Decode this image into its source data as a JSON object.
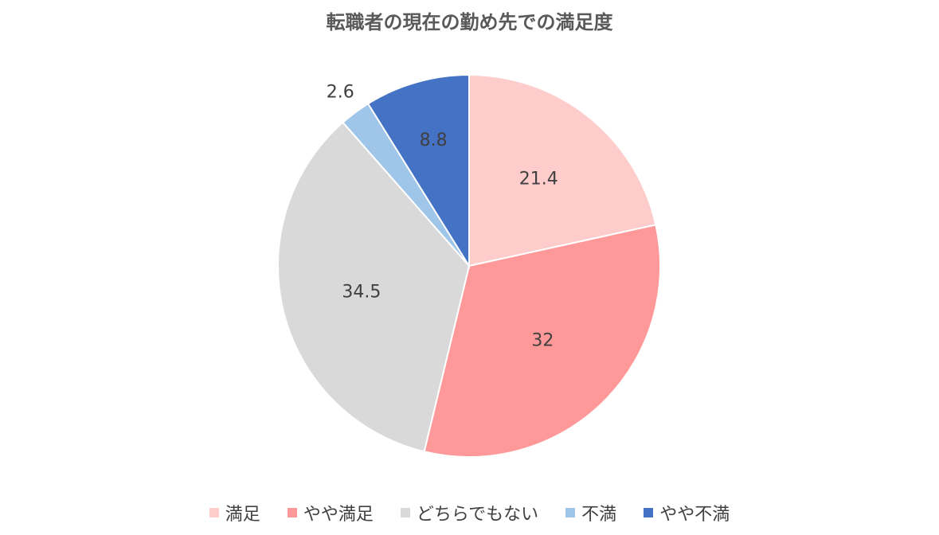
{
  "chart_data": {
    "type": "pie",
    "title": "転職者の現在の勤め先での満足度",
    "start_angle_deg": 0,
    "direction": "clockwise",
    "legend_position": "bottom",
    "slices": [
      {
        "label": "満足",
        "value": 21.4,
        "color": "#FFCCCC",
        "data_label": "21.4"
      },
      {
        "label": "やや満足",
        "value": 32,
        "color": "#FF9999",
        "data_label": "32"
      },
      {
        "label": "どちらでもない",
        "value": 34.5,
        "color": "#D9D9D9",
        "data_label": "34.5"
      },
      {
        "label": "不満",
        "value": 2.6,
        "color": "#9FC5E8",
        "data_label": "2.6"
      },
      {
        "label": "やや不満",
        "value": 8.8,
        "color": "#4472C4",
        "data_label": "8.8"
      }
    ]
  }
}
